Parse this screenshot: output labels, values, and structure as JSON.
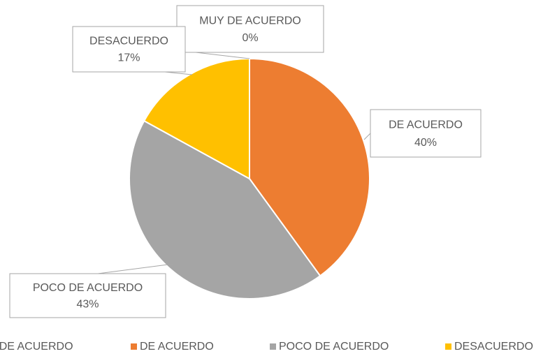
{
  "chart_data": {
    "type": "pie",
    "categories": [
      "MUY DE ACUERDO",
      "DE ACUERDO",
      "POCO DE ACUERDO",
      "DESACUERDO"
    ],
    "values": [
      0,
      40,
      43,
      17
    ],
    "value_labels": [
      "0%",
      "40%",
      "43%",
      "17%"
    ],
    "colors": [
      "#4472c4",
      "#ed7d31",
      "#a5a5a5",
      "#ffc000"
    ],
    "legend": "bottom"
  }
}
